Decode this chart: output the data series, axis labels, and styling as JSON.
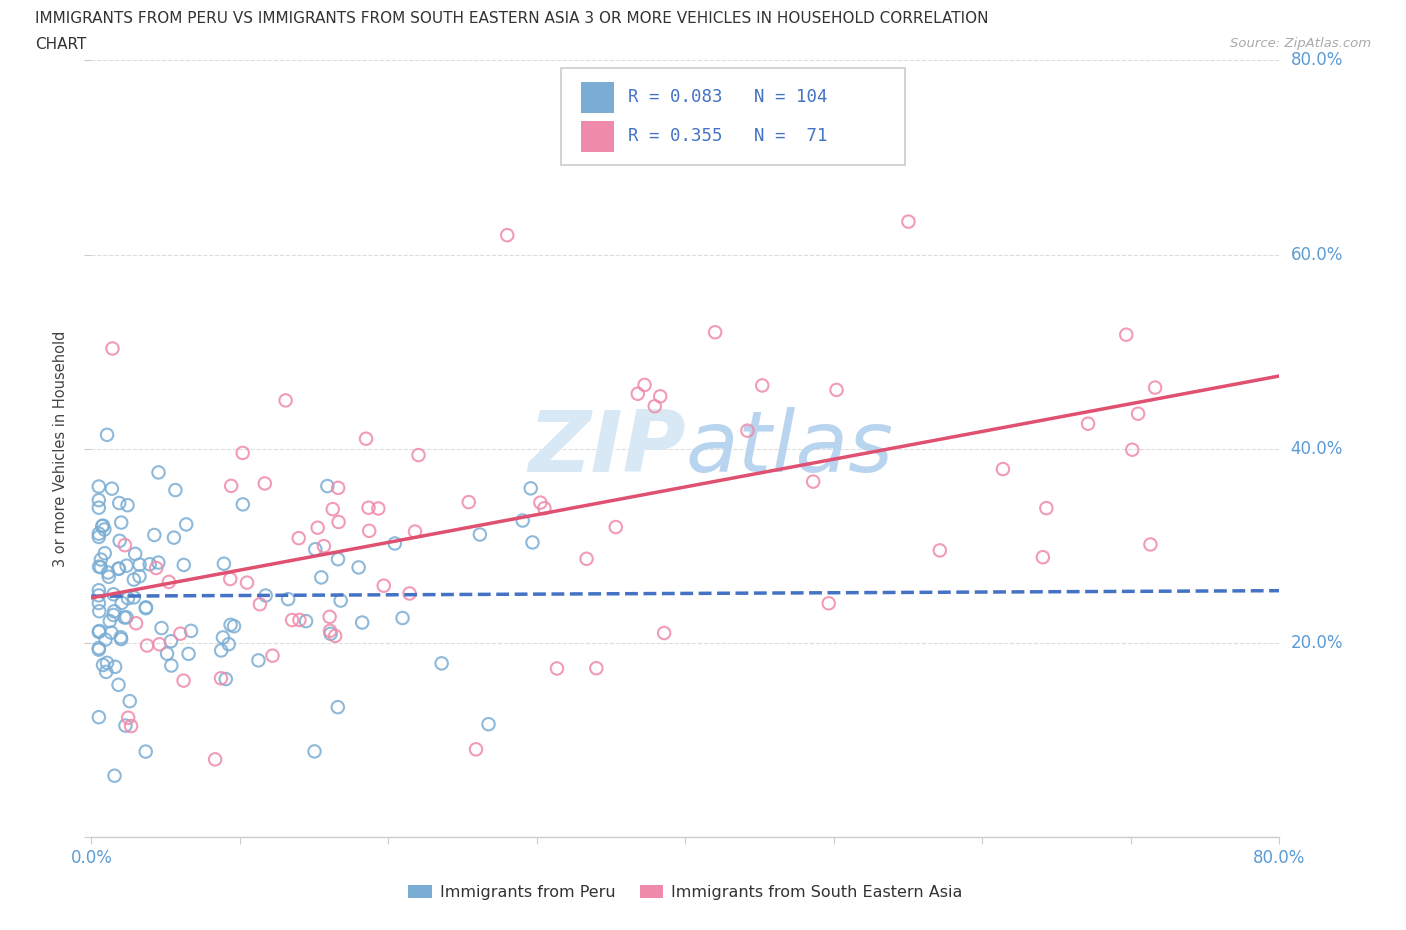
{
  "title_line1": "IMMIGRANTS FROM PERU VS IMMIGRANTS FROM SOUTH EASTERN ASIA 3 OR MORE VEHICLES IN HOUSEHOLD CORRELATION",
  "title_line2": "CHART",
  "source_text": "Source: ZipAtlas.com",
  "ylabel": "3 or more Vehicles in Household",
  "xlim": [
    0,
    0.8
  ],
  "ylim": [
    0,
    0.8
  ],
  "peru_color": "#7aadd4",
  "sea_color": "#f08aaa",
  "peru_R": 0.083,
  "peru_N": 104,
  "sea_R": 0.355,
  "sea_N": 71,
  "peru_trend_color": "#4472c4",
  "sea_trend_color": "#e05070",
  "tick_color": "#5b9bd5",
  "grid_color": "#dddddd",
  "background_color": "#ffffff",
  "legend_label1": "Immigrants from Peru",
  "legend_label2": "Immigrants from South Eastern Asia"
}
